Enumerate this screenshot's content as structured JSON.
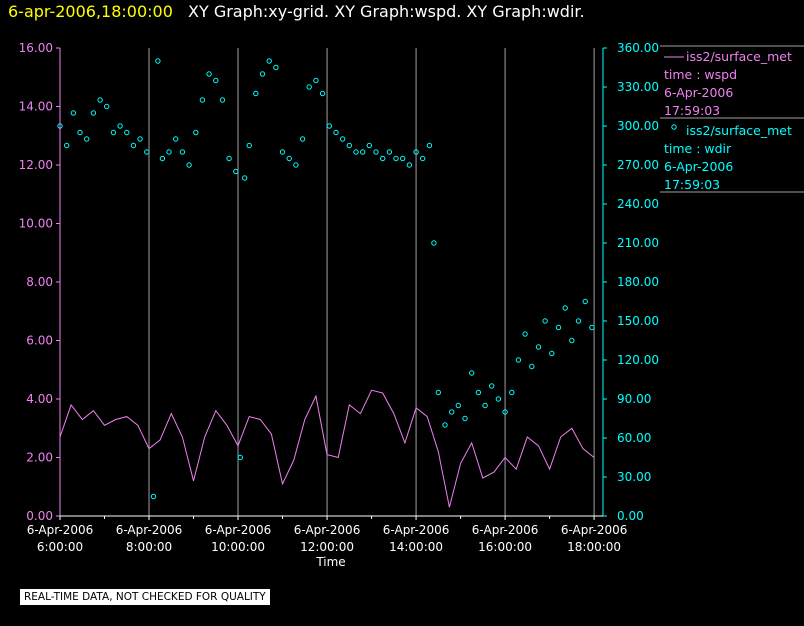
{
  "header": {
    "timestamp": "6-apr-2006,18:00:00",
    "graph_titles": "XY Graph:xy-grid.  XY Graph:wspd.  XY Graph:wdir."
  },
  "footer": {
    "disclaimer": "REAL-TIME DATA, NOT CHECKED FOR QUALITY"
  },
  "colors": {
    "background": "#000000",
    "wspd": "#ee82ee",
    "wdir": "#00ffff",
    "grid": "#a0a0a0",
    "axis_text": "#ffffff"
  },
  "chart_data": {
    "type": "line",
    "xlabel": "Time",
    "x_ticks": [
      {
        "date": "6-Apr-2006",
        "time": "6:00:00"
      },
      {
        "date": "6-Apr-2006",
        "time": "8:00:00"
      },
      {
        "date": "6-Apr-2006",
        "time": "10:00:00"
      },
      {
        "date": "6-Apr-2006",
        "time": "12:00:00"
      },
      {
        "date": "6-Apr-2006",
        "time": "14:00:00"
      },
      {
        "date": "6-Apr-2006",
        "time": "16:00:00"
      },
      {
        "date": "6-Apr-2006",
        "time": "18:00:00"
      }
    ],
    "xlim": [
      "6-Apr-2006 6:00:00",
      "6-Apr-2006 18:00:00"
    ],
    "grid": "vertical",
    "y_left": {
      "series": "wspd",
      "ylim": [
        0,
        16
      ],
      "ticks": [
        "0.00",
        "2.00",
        "4.00",
        "6.00",
        "8.00",
        "10.00",
        "12.00",
        "14.00",
        "16.00"
      ]
    },
    "y_right": {
      "series": "wdir",
      "ylim": [
        0,
        360
      ],
      "ticks": [
        "0.00",
        "30.00",
        "60.00",
        "90.00",
        "120.00",
        "150.00",
        "180.00",
        "210.00",
        "240.00",
        "270.00",
        "300.00",
        "330.00",
        "360.00"
      ]
    },
    "legend": [
      {
        "name": "iss2/surface_met",
        "line2": "time : wspd",
        "line3": "6-Apr-2006",
        "line4": "17:59:03",
        "marker": "line"
      },
      {
        "name": "iss2/surface_met",
        "line2": "time : wdir",
        "line3": "6-Apr-2006",
        "line4": "17:59:03",
        "marker": "circle"
      }
    ],
    "legend_position": "right",
    "series": [
      {
        "name": "iss2/surface_met time : wspd",
        "axis": "left",
        "style": "line",
        "x_hours": [
          6.0,
          6.25,
          6.5,
          6.75,
          7.0,
          7.25,
          7.5,
          7.75,
          8.0,
          8.25,
          8.5,
          8.75,
          9.0,
          9.25,
          9.5,
          9.75,
          10.0,
          10.25,
          10.5,
          10.75,
          11.0,
          11.25,
          11.5,
          11.75,
          12.0,
          12.25,
          12.5,
          12.75,
          13.0,
          13.25,
          13.5,
          13.75,
          14.0,
          14.25,
          14.5,
          14.75,
          15.0,
          15.25,
          15.5,
          15.75,
          16.0,
          16.25,
          16.5,
          16.75,
          17.0,
          17.25,
          17.5,
          17.75,
          18.0
        ],
        "values": [
          2.7,
          3.8,
          3.3,
          3.6,
          3.1,
          3.3,
          3.4,
          3.1,
          2.3,
          2.6,
          3.5,
          2.7,
          1.2,
          2.7,
          3.6,
          3.1,
          2.4,
          3.4,
          3.3,
          2.8,
          1.1,
          1.9,
          3.3,
          4.1,
          2.1,
          2.0,
          3.8,
          3.5,
          4.3,
          4.2,
          3.5,
          2.5,
          3.7,
          3.4,
          2.2,
          0.3,
          1.8,
          2.5,
          1.3,
          1.5,
          2.0,
          1.6,
          2.7,
          2.4,
          1.6,
          2.7,
          3.0,
          2.3,
          2.0
        ]
      },
      {
        "name": "iss2/surface_met time : wdir",
        "axis": "right",
        "style": "circles",
        "x_hours": [
          6.0,
          6.15,
          6.3,
          6.45,
          6.6,
          6.75,
          6.9,
          7.05,
          7.2,
          7.35,
          7.5,
          7.65,
          7.8,
          7.95,
          8.1,
          8.2,
          8.3,
          8.45,
          8.6,
          8.75,
          8.9,
          9.05,
          9.2,
          9.35,
          9.5,
          9.65,
          9.8,
          9.95,
          10.05,
          10.15,
          10.25,
          10.4,
          10.55,
          10.7,
          10.85,
          11.0,
          11.15,
          11.3,
          11.45,
          11.6,
          11.75,
          11.9,
          12.05,
          12.2,
          12.35,
          12.5,
          12.65,
          12.8,
          12.95,
          13.1,
          13.25,
          13.4,
          13.55,
          13.7,
          13.85,
          14.0,
          14.15,
          14.3,
          14.4,
          14.5,
          14.65,
          14.8,
          14.95,
          15.1,
          15.25,
          15.4,
          15.55,
          15.7,
          15.85,
          16.0,
          16.15,
          16.3,
          16.45,
          16.6,
          16.75,
          16.9,
          17.05,
          17.2,
          17.35,
          17.5,
          17.65,
          17.8,
          17.95
        ],
        "values": [
          300,
          285,
          310,
          295,
          290,
          310,
          320,
          315,
          295,
          300,
          295,
          285,
          290,
          280,
          15,
          350,
          275,
          280,
          290,
          280,
          270,
          295,
          320,
          340,
          335,
          320,
          275,
          265,
          45,
          260,
          285,
          325,
          340,
          350,
          345,
          280,
          275,
          270,
          290,
          330,
          335,
          325,
          300,
          295,
          290,
          285,
          280,
          280,
          285,
          280,
          275,
          280,
          275,
          275,
          270,
          280,
          275,
          285,
          210,
          95,
          70,
          80,
          85,
          75,
          110,
          95,
          85,
          100,
          90,
          80,
          95,
          120,
          140,
          115,
          130,
          150,
          125,
          145,
          160,
          135,
          150,
          165,
          145
        ]
      }
    ]
  }
}
